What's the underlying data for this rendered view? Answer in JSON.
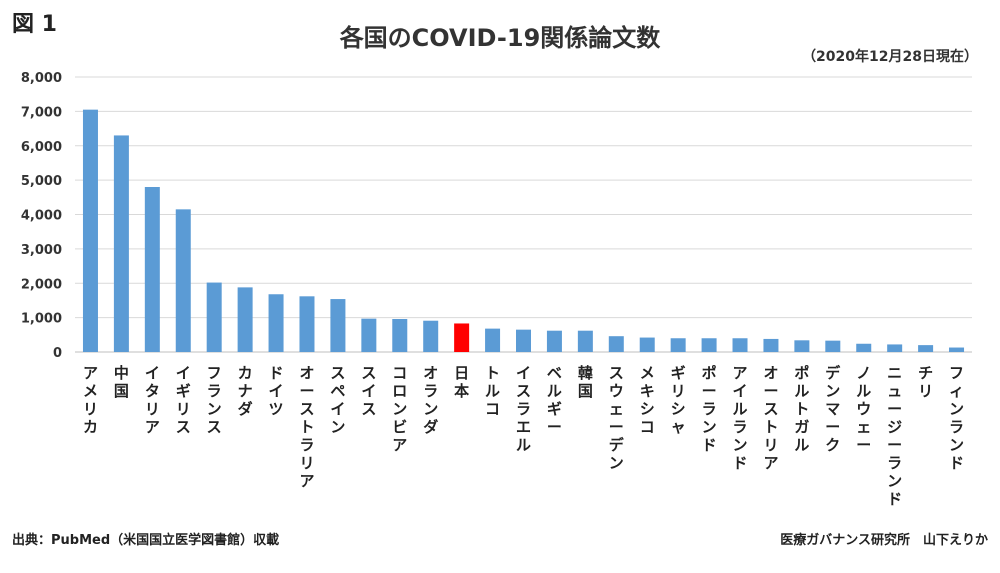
{
  "figure_label": "図 1",
  "note": "（2020年12月28日現在）",
  "source_left": "出典：PubMed（米国国立医学図書館）収載",
  "source_right": "医療ガバナンス研究所　山下えりか",
  "colors": {
    "bar": "#5b9bd5",
    "highlight": "#ff0000",
    "grid": "#d9d9d9"
  },
  "chart_data": {
    "type": "bar",
    "title": "各国のCOVID-19関係論文数",
    "xlabel": "",
    "ylabel": "",
    "ylim": [
      0,
      8000
    ],
    "yticks": [
      "0",
      "1,000",
      "2,000",
      "3,000",
      "4,000",
      "5,000",
      "6,000",
      "7,000",
      "8,000"
    ],
    "grid": true,
    "legend": "none",
    "categories": [
      "アメリカ",
      "中国",
      "イタリア",
      "イギリス",
      "フランス",
      "カナダ",
      "ドイツ",
      "オーストラリア",
      "スペイン",
      "スイス",
      "コロンビア",
      "オランダ",
      "日本",
      "トルコ",
      "イスラエル",
      "ベルギー",
      "韓国",
      "スウェーデン",
      "メキシコ",
      "ギリシャ",
      "ポーランド",
      "アイルランド",
      "オーストリア",
      "ポルトガル",
      "デンマーク",
      "ノルウェー",
      "ニュージーランド",
      "チリ",
      "フィンランド"
    ],
    "values": [
      7050,
      6300,
      4800,
      4150,
      2020,
      1880,
      1680,
      1620,
      1540,
      970,
      960,
      910,
      830,
      680,
      650,
      620,
      620,
      460,
      420,
      400,
      400,
      400,
      380,
      340,
      330,
      240,
      220,
      200,
      130
    ],
    "highlight": "日本"
  }
}
